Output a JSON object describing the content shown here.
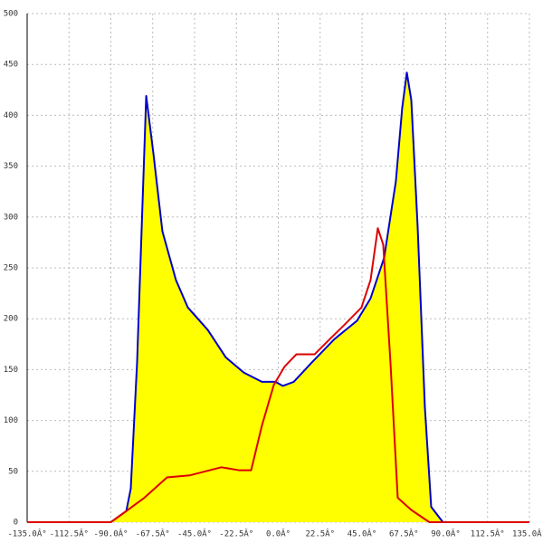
{
  "chart_data": {
    "type": "area",
    "xlim": [
      -135,
      135
    ],
    "xticks": [
      {
        "value": -135,
        "label": "-135.0Â°"
      },
      {
        "value": -112.5,
        "label": "-112.5Â°"
      },
      {
        "value": -90,
        "label": "-90.0Â°"
      },
      {
        "value": -67.5,
        "label": "-67.5Â°"
      },
      {
        "value": -45,
        "label": "-45.0Â°"
      },
      {
        "value": -22.5,
        "label": "-22.5Â°"
      },
      {
        "value": 0,
        "label": "0.0Â°"
      },
      {
        "value": 22.5,
        "label": "22.5Â°"
      },
      {
        "value": 45,
        "label": "45.0Â°"
      },
      {
        "value": 67.5,
        "label": "67.5Â°"
      },
      {
        "value": 90,
        "label": "90.0Â°"
      },
      {
        "value": 112.5,
        "label": "112.5Â°"
      },
      {
        "value": 135,
        "label": "135.0Â°"
      }
    ],
    "ylim": [
      0,
      500
    ],
    "yticks": [
      0,
      50,
      100,
      150,
      200,
      250,
      300,
      350,
      400,
      450,
      500
    ],
    "grid": true,
    "series": [
      {
        "color": "#0000cc",
        "fill": "#ffff00",
        "x": [
          -135,
          -90,
          -81.7,
          -79.3,
          -75.9,
          -73.4,
          -71,
          -67.1,
          -62.3,
          -55,
          -48.6,
          -37.9,
          -28.2,
          -18.5,
          -8.8,
          -1.5,
          2.4,
          8.3,
          18,
          30.2,
          42.3,
          49.6,
          56.9,
          63.2,
          66.6,
          69.1,
          71.5,
          74.9,
          78.8,
          82.2,
          88.5,
          135
        ],
        "values": [
          0,
          0,
          11,
          33,
          157,
          291,
          419,
          362,
          286,
          238,
          211,
          189,
          162,
          147,
          138,
          138,
          134,
          138,
          157,
          180,
          198,
          220,
          260,
          335,
          407,
          442,
          415,
          291,
          113,
          15,
          0,
          0
        ]
      },
      {
        "color": "#dd0000",
        "x": [
          -135,
          -90,
          -81.7,
          -72,
          -59.8,
          -47.7,
          -30.6,
          -20.9,
          -14.6,
          -8.8,
          -2.4,
          3.4,
          9.7,
          19.5,
          27.7,
          35,
          44.7,
          49.6,
          53.5,
          56.4,
          60.3,
          64.2,
          71.5,
          81.2,
          135
        ],
        "values": [
          0,
          0,
          11,
          24,
          44,
          46,
          54,
          51,
          51,
          95,
          135,
          153,
          165,
          165,
          180,
          193,
          211,
          238,
          289,
          273,
          157,
          24,
          12,
          0,
          0
        ]
      }
    ]
  }
}
